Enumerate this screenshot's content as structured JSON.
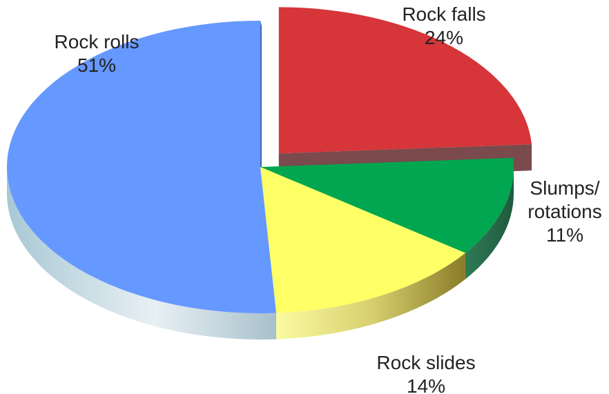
{
  "chart_data": {
    "type": "pie",
    "title": "",
    "categories": [
      "Rock falls",
      "Slumps/ rotations",
      "Rock slides",
      "Rock rolls"
    ],
    "values": [
      24,
      11,
      14,
      51
    ],
    "value_labels": [
      "24%",
      "11%",
      "14%",
      "51%"
    ],
    "label_lines": [
      [
        "Rock falls"
      ],
      [
        "Slumps/",
        "rotations"
      ],
      [
        "Rock slides"
      ],
      [
        "Rock rolls"
      ]
    ],
    "colors": [
      "#d63539",
      "#00a650",
      "#ffff66",
      "#6699ff"
    ],
    "side_colors": [
      "#7a4a4c",
      "#2f6b4e",
      "#c8c050",
      "#9fc0d0"
    ],
    "exploded_slice": "Rock falls",
    "style": "3D",
    "legend": "none"
  }
}
